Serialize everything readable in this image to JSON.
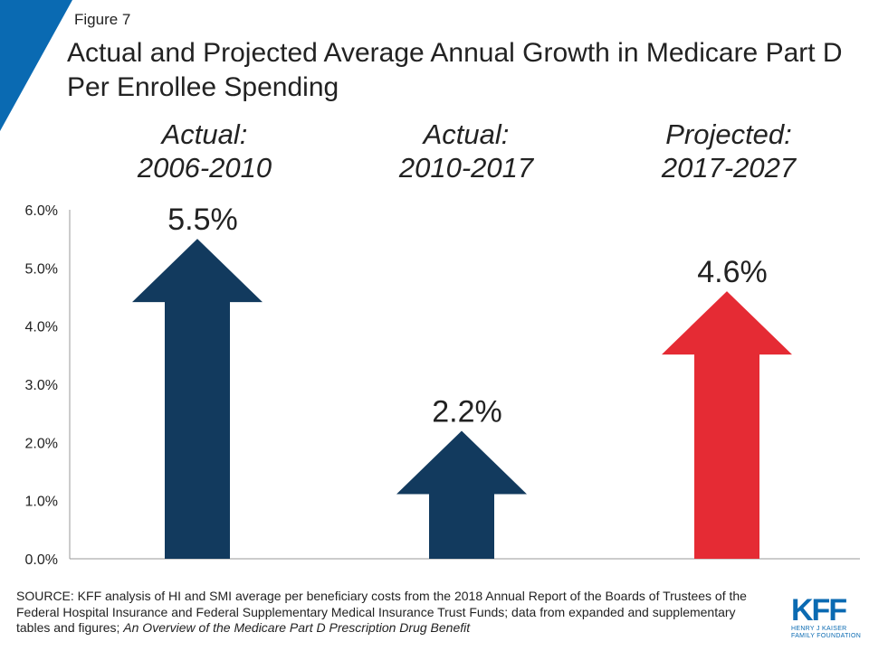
{
  "figure_label": "Figure 7",
  "title": "Actual and Projected Average Annual Growth in Medicare Part D Per Enrollee Spending",
  "colors": {
    "accent_corner": "#0a6ab2",
    "actual": "#123a5e",
    "projected": "#e52b34",
    "axis": "#999999"
  },
  "chart_data": {
    "type": "bar",
    "mark": "arrow",
    "title": "Actual and Projected Average Annual Growth in Medicare Part D Per Enrollee Spending",
    "categories": [
      {
        "line1": "Actual:",
        "line2": "2006-2010",
        "value": 5.5,
        "label": "5.5%",
        "color": "#123a5e"
      },
      {
        "line1": "Actual:",
        "line2": "2010-2017",
        "value": 2.2,
        "label": "2.2%",
        "color": "#123a5e"
      },
      {
        "line1": "Projected:",
        "line2": "2017-2027",
        "value": 4.6,
        "label": "4.6%",
        "color": "#e52b34"
      }
    ],
    "ylim": [
      0,
      6
    ],
    "yticks": [
      "0.0%",
      "1.0%",
      "2.0%",
      "3.0%",
      "4.0%",
      "5.0%",
      "6.0%"
    ],
    "xlabel": "",
    "ylabel": "",
    "grid": false,
    "legend": "none"
  },
  "source": {
    "main": "SOURCE: KFF analysis of HI and SMI average per beneficiary costs from the 2018 Annual Report of the Boards of Trustees of the Federal Hospital Insurance and Federal Supplementary Medical Insurance Trust Funds; data from expanded and supplementary tables and figures; ",
    "italic": "An Overview of the Medicare Part D Prescription Drug Benefit"
  },
  "logo": {
    "mark": "KFF",
    "line1": "HENRY J KAISER",
    "line2": "FAMILY FOUNDATION"
  }
}
